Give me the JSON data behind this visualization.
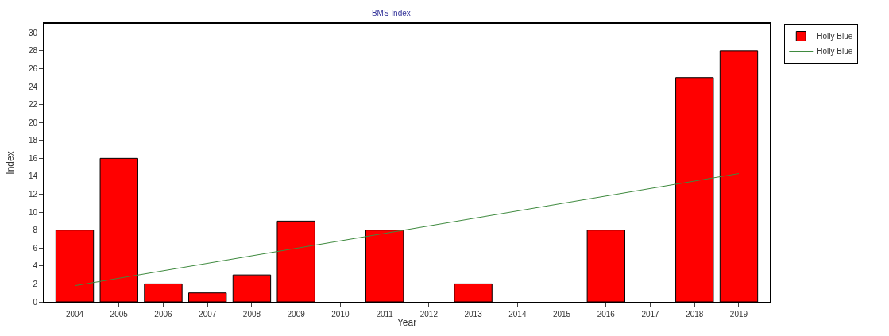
{
  "chart_data": {
    "type": "bar",
    "title": "BMS Index",
    "xlabel": "Year",
    "ylabel": "Index",
    "categories": [
      "2004",
      "2005",
      "2006",
      "2007",
      "2008",
      "2009",
      "2010",
      "2011",
      "2012",
      "2013",
      "2014",
      "2015",
      "2016",
      "2017",
      "2018",
      "2019"
    ],
    "series": [
      {
        "name": "Holly Blue",
        "color": "#ff0000",
        "values": [
          8,
          16,
          2,
          1,
          3,
          9,
          0,
          8,
          0,
          2,
          0,
          0,
          8,
          0,
          25,
          28
        ]
      },
      {
        "name": "Holly Blue",
        "type": "line",
        "color": "#3f8a3f",
        "values": [
          1.8,
          null,
          null,
          null,
          null,
          null,
          null,
          null,
          null,
          null,
          null,
          null,
          null,
          null,
          null,
          14.3
        ]
      }
    ],
    "ylim": [
      0,
      31
    ],
    "yticks": [
      0,
      2,
      4,
      6,
      8,
      10,
      12,
      14,
      16,
      18,
      20,
      22,
      24,
      26,
      28,
      30
    ],
    "legend": "top right"
  }
}
